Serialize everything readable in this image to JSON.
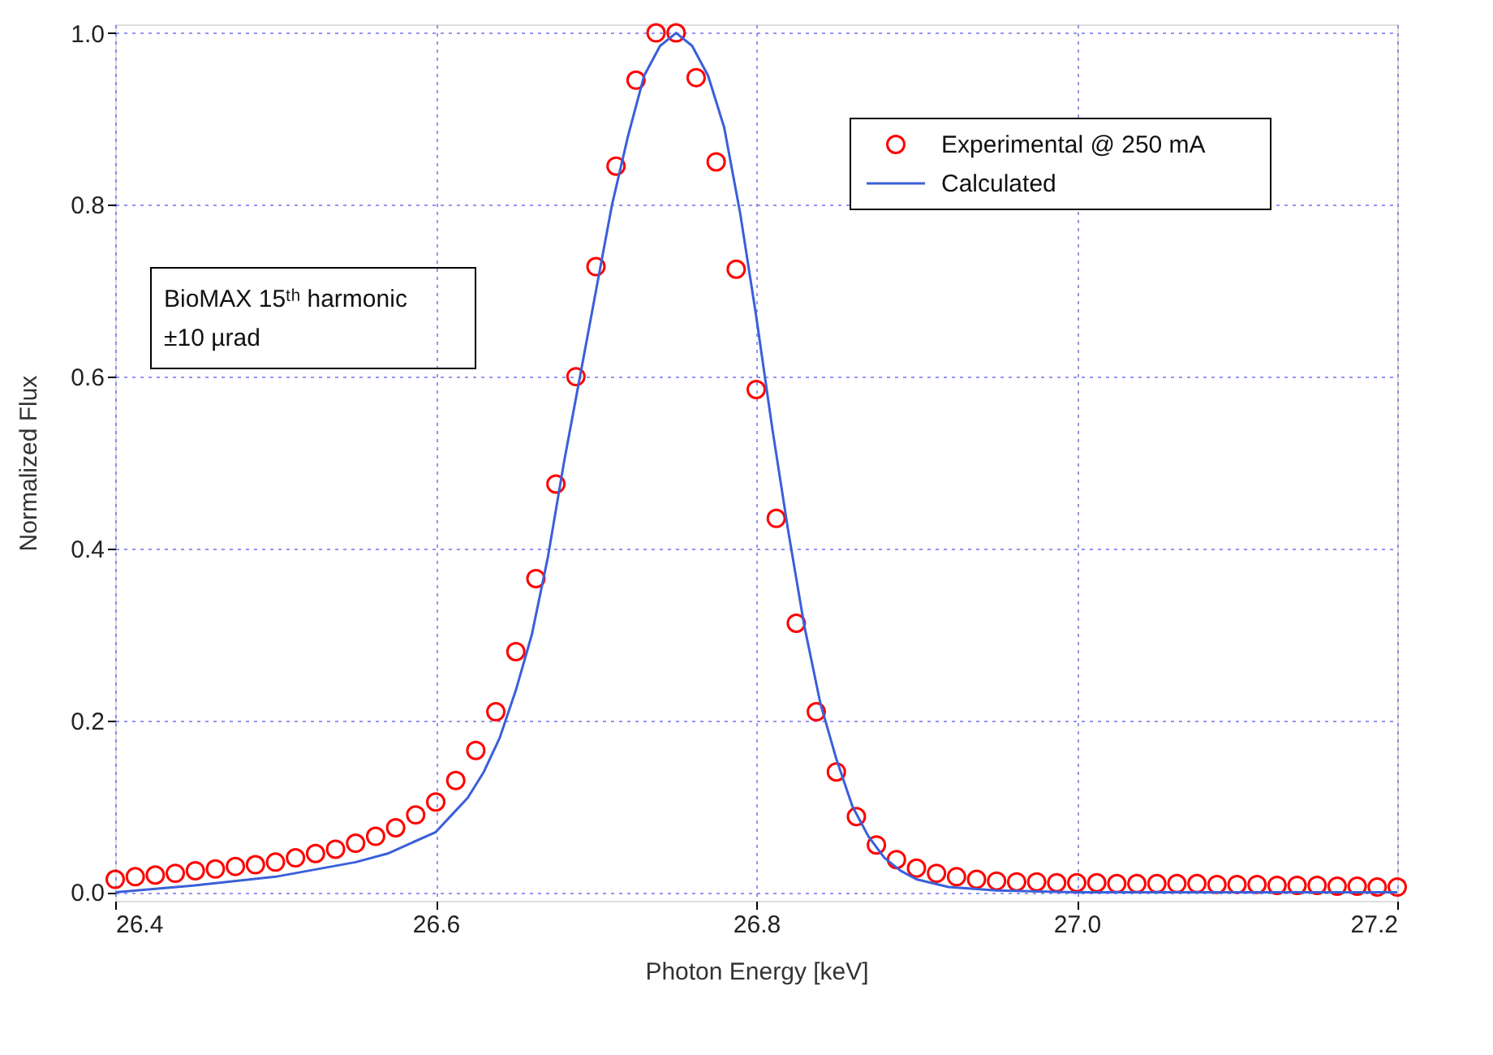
{
  "chart_data": {
    "type": "scatter",
    "xlabel": "Photon Energy [keV]",
    "ylabel": "Normalized Flux",
    "xlim": [
      26.4,
      27.2
    ],
    "ylim": [
      -0.01,
      1.01
    ],
    "xticks": [
      {
        "value": 26.4,
        "label": "26.4"
      },
      {
        "value": 26.6,
        "label": "26.6"
      },
      {
        "value": 26.8,
        "label": "26.8"
      },
      {
        "value": 27.0,
        "label": "27.0"
      },
      {
        "value": 27.2,
        "label": "27.2"
      }
    ],
    "yticks": [
      {
        "value": 0,
        "label": "0.0"
      },
      {
        "value": 0.2,
        "label": "0.2"
      },
      {
        "value": 0.4,
        "label": "0.4"
      },
      {
        "value": 0.6,
        "label": "0.6"
      },
      {
        "value": 0.8,
        "label": "0.8"
      },
      {
        "value": 1.0,
        "label": "1.0"
      }
    ],
    "grid": true,
    "legend": "top right",
    "annotations": [
      "BioMAX 15ᵗʰ harmonic",
      "±10 µrad"
    ],
    "series": [
      {
        "name": "Experimental @ 250 mA",
        "marker": "circle",
        "color": "#ff0000",
        "x": [
          26.4,
          26.4125,
          26.425,
          26.4375,
          26.45,
          26.4625,
          26.475,
          26.4875,
          26.5,
          26.5125,
          26.525,
          26.5375,
          26.55,
          26.5625,
          26.575,
          26.5875,
          26.6,
          26.6125,
          26.625,
          26.6375,
          26.65,
          26.6625,
          26.675,
          26.6875,
          26.7,
          26.7125,
          26.725,
          26.7375,
          26.75,
          26.7625,
          26.775,
          26.7875,
          26.8,
          26.8125,
          26.825,
          26.8375,
          26.85,
          26.8625,
          26.875,
          26.8875,
          26.9,
          26.9125,
          26.925,
          26.9375,
          26.95,
          26.9625,
          26.975,
          26.9875,
          27.0,
          27.0125,
          27.025,
          27.0375,
          27.05,
          27.0625,
          27.075,
          27.0875,
          27.1,
          27.1125,
          27.125,
          27.1375,
          27.15,
          27.1625,
          27.175,
          27.1875,
          27.2
        ],
        "values": [
          0.015,
          0.018,
          0.02,
          0.022,
          0.025,
          0.027,
          0.03,
          0.032,
          0.035,
          0.04,
          0.045,
          0.05,
          0.057,
          0.065,
          0.075,
          0.09,
          0.105,
          0.13,
          0.165,
          0.21,
          0.28,
          0.365,
          0.475,
          0.6,
          0.728,
          0.845,
          0.945,
          1.0,
          1.0,
          0.948,
          0.85,
          0.725,
          0.585,
          0.435,
          0.313,
          0.21,
          0.14,
          0.088,
          0.055,
          0.038,
          0.028,
          0.022,
          0.018,
          0.015,
          0.013,
          0.012,
          0.012,
          0.011,
          0.011,
          0.011,
          0.01,
          0.01,
          0.01,
          0.01,
          0.01,
          0.009,
          0.009,
          0.009,
          0.008,
          0.008,
          0.008,
          0.007,
          0.007,
          0.006,
          0.006
        ]
      },
      {
        "name": "Calculated",
        "type": "line",
        "line_style": "solid",
        "color": "#3a5fd9",
        "x": [
          26.4,
          26.45,
          26.5,
          26.55,
          26.57,
          26.6,
          26.61,
          26.62,
          26.63,
          26.64,
          26.65,
          26.66,
          26.67,
          26.68,
          26.69,
          26.7,
          26.71,
          26.72,
          26.73,
          26.74,
          26.75,
          26.76,
          26.77,
          26.78,
          26.79,
          26.8,
          26.81,
          26.82,
          26.83,
          26.84,
          26.85,
          26.86,
          26.87,
          26.88,
          26.89,
          26.9,
          26.92,
          26.95,
          27.0,
          27.1,
          27.2
        ],
        "values": [
          0.0,
          0.008,
          0.018,
          0.035,
          0.045,
          0.07,
          0.09,
          0.11,
          0.14,
          0.18,
          0.235,
          0.3,
          0.39,
          0.5,
          0.6,
          0.7,
          0.8,
          0.88,
          0.95,
          0.985,
          1.0,
          0.985,
          0.95,
          0.89,
          0.79,
          0.67,
          0.54,
          0.42,
          0.31,
          0.22,
          0.155,
          0.1,
          0.065,
          0.04,
          0.025,
          0.015,
          0.006,
          0.002,
          0.0,
          0.0,
          0.0
        ]
      }
    ]
  }
}
